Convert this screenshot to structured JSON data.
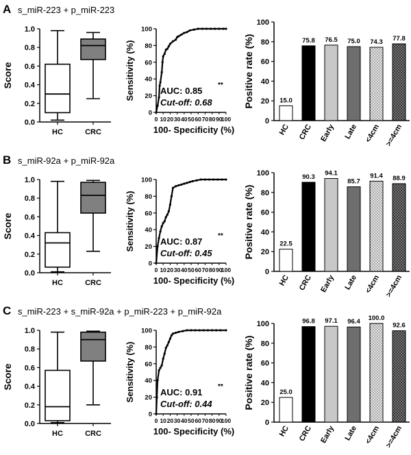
{
  "chart_data": [
    {
      "panel": "A",
      "title": "s_miR-223 + p_miR-223",
      "boxplot": {
        "type": "boxplot",
        "ylabel": "Score",
        "ylim": [
          0,
          1.0
        ],
        "yticks": [
          "0.0",
          "0.2",
          "0.4",
          "0.6",
          "0.8",
          "1.0"
        ],
        "categories": [
          "HC",
          "CRC"
        ],
        "boxes": [
          {
            "name": "HC",
            "min": 0.02,
            "q1": 0.1,
            "median": 0.3,
            "q3": 0.62,
            "max": 0.98,
            "color": "#ffffff"
          },
          {
            "name": "CRC",
            "min": 0.25,
            "q1": 0.67,
            "median": 0.82,
            "q3": 0.89,
            "max": 0.96,
            "color": "#808080"
          }
        ]
      },
      "roc": {
        "type": "line",
        "xlabel": "100- Specificity (%)",
        "ylabel": "Sensitivity (%)",
        "xticks": [
          "0",
          "10",
          "20",
          "30",
          "40",
          "50",
          "60",
          "70",
          "80",
          "90",
          "100"
        ],
        "yticks": [
          "0",
          "20",
          "40",
          "60",
          "80",
          "100"
        ],
        "auc_label": "AUC: 0.85",
        "auc_sig": "**",
        "cutoff_label": "Cut-off: 0.68",
        "points": [
          [
            0,
            0
          ],
          [
            2,
            8
          ],
          [
            4,
            18
          ],
          [
            5,
            32
          ],
          [
            6,
            36
          ],
          [
            8,
            48
          ],
          [
            9,
            60
          ],
          [
            10,
            67
          ],
          [
            12,
            70
          ],
          [
            14,
            75
          ],
          [
            16,
            76
          ],
          [
            18,
            79
          ],
          [
            20,
            82
          ],
          [
            24,
            85
          ],
          [
            28,
            87
          ],
          [
            30,
            90
          ],
          [
            32,
            91
          ],
          [
            36,
            93
          ],
          [
            40,
            95
          ],
          [
            44,
            96
          ],
          [
            48,
            98
          ],
          [
            54,
            99
          ],
          [
            60,
            100
          ],
          [
            66,
            100
          ],
          [
            72,
            100
          ],
          [
            78,
            100
          ],
          [
            84,
            100
          ],
          [
            90,
            100
          ],
          [
            96,
            100
          ],
          [
            100,
            100
          ]
        ]
      },
      "bars": {
        "type": "bar",
        "ylabel": "Positive rate (%)",
        "ylim": [
          0,
          100
        ],
        "yticks": [
          "0",
          "20",
          "40",
          "60",
          "80",
          "100"
        ],
        "categories": [
          "HC",
          "CRC",
          "Early",
          "Late",
          "<4cm",
          ">=4cm"
        ],
        "values": [
          15.0,
          75.8,
          76.5,
          75.0,
          74.3,
          77.8
        ],
        "labels": [
          "15.0",
          "75.8",
          "76.5",
          "75.0",
          "74.3",
          "77.8"
        ]
      }
    },
    {
      "panel": "B",
      "title": "s_miR-92a + p_miR-92a",
      "boxplot": {
        "type": "boxplot",
        "ylabel": "Score",
        "ylim": [
          0,
          1.0
        ],
        "yticks": [
          "0.0",
          "0.2",
          "0.4",
          "0.6",
          "0.8",
          "1.0"
        ],
        "categories": [
          "HC",
          "CRC"
        ],
        "boxes": [
          {
            "name": "HC",
            "min": 0.01,
            "q1": 0.06,
            "median": 0.32,
            "q3": 0.43,
            "max": 0.98,
            "color": "#ffffff"
          },
          {
            "name": "CRC",
            "min": 0.23,
            "q1": 0.64,
            "median": 0.83,
            "q3": 0.97,
            "max": 0.99,
            "color": "#808080"
          }
        ]
      },
      "roc": {
        "type": "line",
        "xlabel": "100- Specificity (%)",
        "ylabel": "Sensitivity (%)",
        "xticks": [
          "0",
          "10",
          "20",
          "30",
          "40",
          "50",
          "60",
          "70",
          "80",
          "90",
          "100"
        ],
        "yticks": [
          "0",
          "20",
          "40",
          "60",
          "80",
          "100"
        ],
        "auc_label": "AUC: 0.87",
        "auc_sig": "**",
        "cutoff_label": "Cut-off: 0.45",
        "points": [
          [
            0,
            0
          ],
          [
            2,
            20
          ],
          [
            4,
            30
          ],
          [
            6,
            38
          ],
          [
            8,
            44
          ],
          [
            10,
            48
          ],
          [
            12,
            50
          ],
          [
            14,
            55
          ],
          [
            16,
            58
          ],
          [
            18,
            62
          ],
          [
            20,
            70
          ],
          [
            22,
            80
          ],
          [
            24,
            90
          ],
          [
            28,
            92
          ],
          [
            32,
            93
          ],
          [
            36,
            94
          ],
          [
            40,
            95
          ],
          [
            44,
            96
          ],
          [
            48,
            97
          ],
          [
            52,
            98
          ],
          [
            58,
            99
          ],
          [
            64,
            100
          ],
          [
            70,
            100
          ],
          [
            76,
            100
          ],
          [
            82,
            100
          ],
          [
            88,
            100
          ],
          [
            94,
            100
          ],
          [
            100,
            100
          ]
        ]
      },
      "bars": {
        "type": "bar",
        "ylabel": "Positive rate (%)",
        "ylim": [
          0,
          100
        ],
        "yticks": [
          "0",
          "20",
          "40",
          "60",
          "80",
          "100"
        ],
        "categories": [
          "HC",
          "CRC",
          "Early",
          "Late",
          "<4cm",
          ">=4cm"
        ],
        "values": [
          22.5,
          90.3,
          94.1,
          85.7,
          91.4,
          88.9
        ],
        "labels": [
          "22.5",
          "90.3",
          "94.1",
          "85.7",
          "91.4",
          "88.9"
        ]
      }
    },
    {
      "panel": "C",
      "title": "s_miR-223 + s_miR-92a + p_miR-223 + p_miR-92a",
      "boxplot": {
        "type": "boxplot",
        "ylabel": "Score",
        "ylim": [
          0,
          1.0
        ],
        "yticks": [
          "0.0",
          "0.2",
          "0.4",
          "0.6",
          "0.8",
          "1.0"
        ],
        "categories": [
          "HC",
          "CRC"
        ],
        "boxes": [
          {
            "name": "HC",
            "min": 0.01,
            "q1": 0.03,
            "median": 0.18,
            "q3": 0.57,
            "max": 0.98,
            "color": "#ffffff"
          },
          {
            "name": "CRC",
            "min": 0.2,
            "q1": 0.67,
            "median": 0.9,
            "q3": 0.98,
            "max": 0.99,
            "color": "#808080"
          }
        ]
      },
      "roc": {
        "type": "line",
        "xlabel": "100- Specificity (%)",
        "ylabel": "Sensitivity (%)",
        "xticks": [
          "0",
          "10",
          "20",
          "30",
          "40",
          "50",
          "60",
          "70",
          "80",
          "90",
          "100"
        ],
        "yticks": [
          "0",
          "20",
          "40",
          "60",
          "80",
          "100"
        ],
        "auc_label": "AUC: 0.91",
        "auc_sig": "**",
        "cutoff_label": "Cut-off: 0.44",
        "points": [
          [
            0,
            0
          ],
          [
            1,
            20
          ],
          [
            2,
            40
          ],
          [
            4,
            52
          ],
          [
            6,
            55
          ],
          [
            8,
            58
          ],
          [
            10,
            66
          ],
          [
            12,
            72
          ],
          [
            14,
            79
          ],
          [
            16,
            82
          ],
          [
            18,
            86
          ],
          [
            20,
            90
          ],
          [
            22,
            94
          ],
          [
            24,
            96
          ],
          [
            28,
            97
          ],
          [
            32,
            98
          ],
          [
            38,
            99
          ],
          [
            44,
            100
          ],
          [
            50,
            100
          ],
          [
            56,
            100
          ],
          [
            62,
            100
          ],
          [
            68,
            100
          ],
          [
            74,
            100
          ],
          [
            80,
            100
          ],
          [
            86,
            100
          ],
          [
            92,
            100
          ],
          [
            100,
            100
          ]
        ]
      },
      "bars": {
        "type": "bar",
        "ylabel": "Positive rate (%)",
        "ylim": [
          0,
          100
        ],
        "yticks": [
          "0",
          "20",
          "40",
          "60",
          "80",
          "100"
        ],
        "categories": [
          "HC",
          "CRC",
          "Early",
          "Late",
          "<4cm",
          ">=4cm"
        ],
        "values": [
          25.0,
          96.8,
          97.1,
          96.4,
          100.0,
          92.6
        ],
        "labels": [
          "25.0",
          "96.8",
          "97.1",
          "96.4",
          "100.0",
          "92.6"
        ]
      }
    }
  ],
  "bar_styles": [
    {
      "fill": "#ffffff",
      "pattern": "none"
    },
    {
      "fill": "#000000",
      "pattern": "none"
    },
    {
      "fill": "#c8c8c8",
      "pattern": "none"
    },
    {
      "fill": "#6e6e6e",
      "pattern": "none"
    },
    {
      "fill": "#e4e4e4",
      "pattern": "dots"
    },
    {
      "fill": "#8c8c8c",
      "pattern": "crosshatch"
    }
  ]
}
